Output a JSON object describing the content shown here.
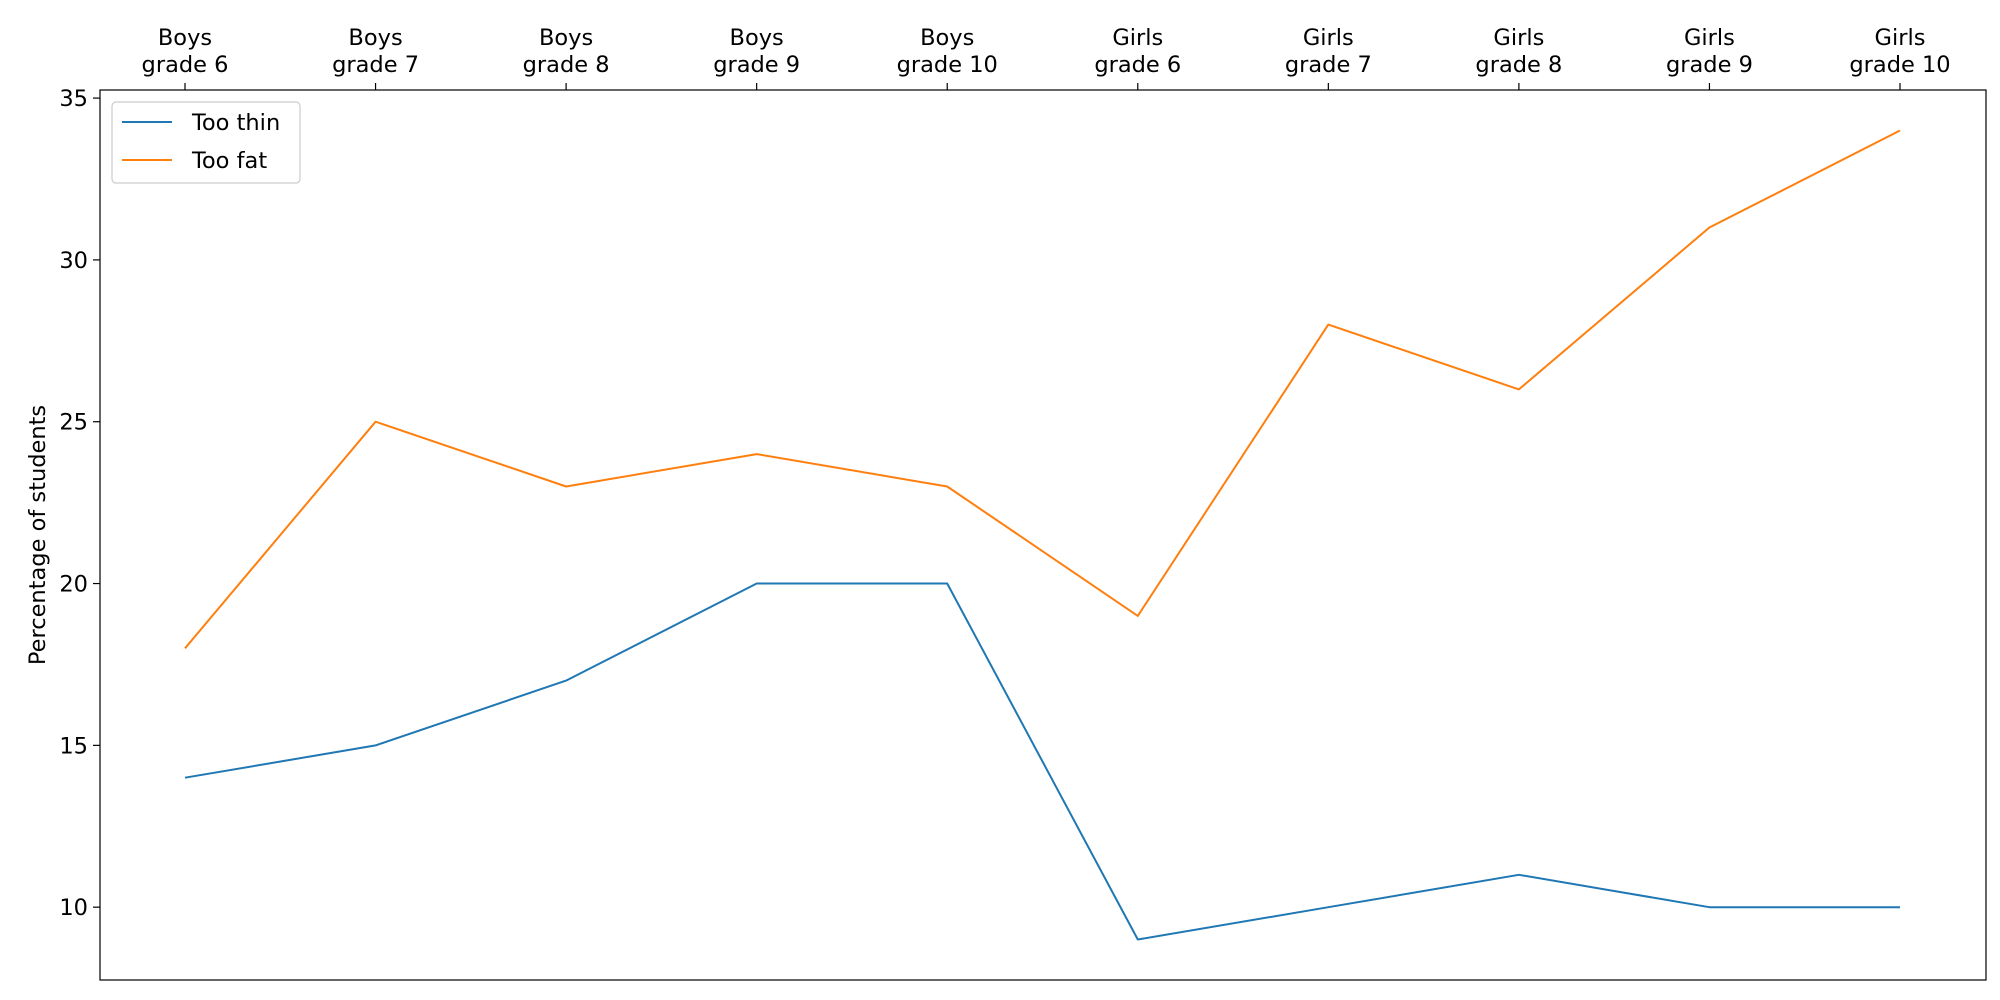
{
  "chart_data": {
    "type": "line",
    "categories": [
      [
        "Boys",
        "grade 6"
      ],
      [
        "Boys",
        "grade 7"
      ],
      [
        "Boys",
        "grade 8"
      ],
      [
        "Boys",
        "grade 9"
      ],
      [
        "Boys",
        "grade 10"
      ],
      [
        "Girls",
        "grade 6"
      ],
      [
        "Girls",
        "grade 7"
      ],
      [
        "Girls",
        "grade 8"
      ],
      [
        "Girls",
        "grade 9"
      ],
      [
        "Girls",
        "grade 10"
      ]
    ],
    "x_axis_position": "top",
    "series": [
      {
        "name": "Too thin",
        "color": "#1f77b4",
        "values": [
          14,
          15,
          17,
          20,
          20,
          9,
          10,
          11,
          10,
          10
        ]
      },
      {
        "name": "Too fat",
        "color": "#ff7f0e",
        "values": [
          18,
          25,
          23,
          24,
          23,
          19,
          28,
          26,
          31,
          34
        ]
      }
    ],
    "title": "",
    "xlabel": "",
    "ylabel": "Percentage of students",
    "ylim": [
      7.75,
      35.25
    ],
    "yticks": [
      10,
      15,
      20,
      25,
      30,
      35
    ],
    "grid": false,
    "legend_position": "top-left"
  }
}
